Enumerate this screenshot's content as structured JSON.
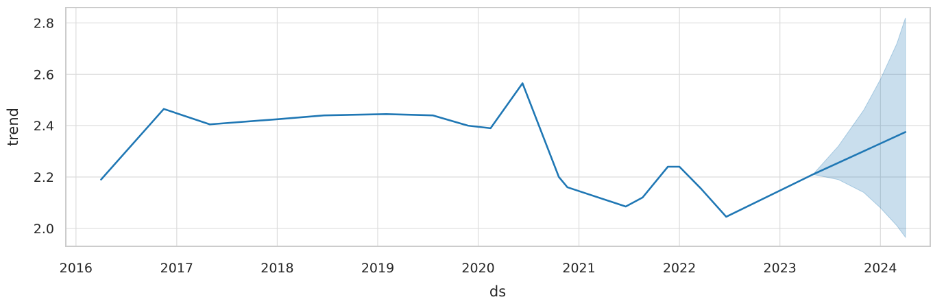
{
  "chart_data": {
    "type": "line",
    "xlabel": "ds",
    "ylabel": "trend",
    "x_tick_labels": [
      "2016",
      "2017",
      "2018",
      "2019",
      "2020",
      "2021",
      "2022",
      "2023",
      "2024"
    ],
    "y_tick_labels": [
      "2.0",
      "2.2",
      "2.4",
      "2.6",
      "2.8"
    ],
    "y_ticks": [
      2.0,
      2.2,
      2.4,
      2.6,
      2.8
    ],
    "xlim": [
      "2015-11-25",
      "2024-06-30"
    ],
    "ylim": [
      1.93,
      2.86
    ],
    "grid": true,
    "colors": {
      "line": "#1f77b4",
      "band": "#1f77b4"
    },
    "series": [
      {
        "x": [
          "2016-04-01",
          "2016-11-15",
          "2017-05-01",
          "2018-01-01",
          "2018-06-20",
          "2019-02-01",
          "2019-07-20",
          "2019-11-25",
          "2020-02-15",
          "2020-06-10",
          "2020-10-20",
          "2020-11-20",
          "2021-06-20",
          "2021-08-20",
          "2021-11-20",
          "2022-01-01",
          "2022-03-20",
          "2022-06-20",
          "2023-05-01",
          "2024-04-01"
        ],
        "y": [
          2.19,
          2.465,
          2.405,
          2.425,
          2.44,
          2.445,
          2.44,
          2.4,
          2.39,
          2.565,
          2.2,
          2.16,
          2.085,
          2.12,
          2.24,
          2.24,
          2.155,
          2.045,
          2.21,
          2.375
        ]
      }
    ],
    "uncertainty_band": {
      "x": [
        "2023-05-01",
        "2023-08-01",
        "2023-11-01",
        "2024-01-01",
        "2024-03-01",
        "2024-04-01"
      ],
      "upper": [
        2.21,
        2.32,
        2.46,
        2.58,
        2.72,
        2.82
      ],
      "lower": [
        2.21,
        2.19,
        2.14,
        2.08,
        2.01,
        1.965
      ]
    }
  }
}
